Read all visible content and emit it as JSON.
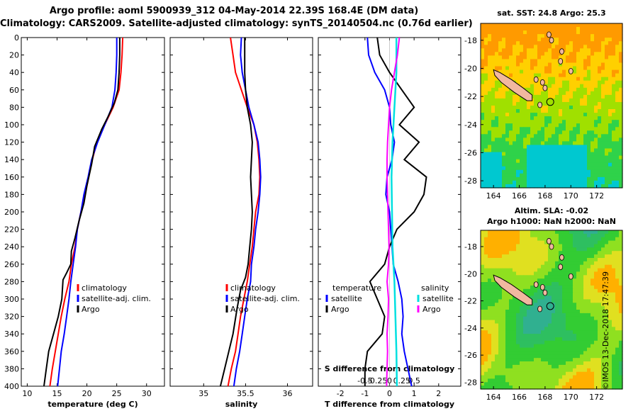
{
  "title": {
    "line1": "Argo profile: aoml 5900939_312 04-May-2014 22.39S 168.4E (DM data)",
    "line2": "Climatology: CARS2009. Satellite-adjusted climatology: synTS_20140504.nc (0.76d earlier)"
  },
  "colors": {
    "clim": "#ff0000",
    "sat": "#0000ff",
    "argo": "#000000",
    "sat_s": "#00e0e0",
    "argo_s": "#ff00ff"
  },
  "chart_data": [
    {
      "id": "temp",
      "type": "line",
      "xlabel": "temperature (deg C)",
      "ylabel": "",
      "xlim": [
        9,
        33
      ],
      "xticks": [
        10,
        15,
        20,
        25,
        30
      ],
      "ylim": [
        0,
        400
      ],
      "yticks": [
        0,
        20,
        40,
        60,
        80,
        100,
        120,
        140,
        160,
        180,
        200,
        220,
        240,
        260,
        280,
        300,
        320,
        340,
        360,
        380,
        400
      ],
      "legend": [
        "climatology",
        "satellite-adj. clim.",
        "Argo"
      ],
      "series": [
        {
          "name": "climatology",
          "color": "#ff0000",
          "points": [
            [
              26.0,
              0
            ],
            [
              25.9,
              20
            ],
            [
              25.7,
              40
            ],
            [
              25.4,
              60
            ],
            [
              24.4,
              80
            ],
            [
              23.0,
              100
            ],
            [
              21.7,
              120
            ],
            [
              20.9,
              140
            ],
            [
              20.3,
              160
            ],
            [
              19.7,
              180
            ],
            [
              19.0,
              200
            ],
            [
              18.4,
              220
            ],
            [
              18.0,
              240
            ],
            [
              17.4,
              260
            ],
            [
              17.0,
              280
            ],
            [
              16.3,
              300
            ],
            [
              15.7,
              320
            ],
            [
              15.2,
              340
            ],
            [
              14.7,
              360
            ],
            [
              14.2,
              380
            ],
            [
              13.8,
              400
            ]
          ]
        },
        {
          "name": "satellite-adj. clim.",
          "color": "#0000ff",
          "points": [
            [
              25.0,
              0
            ],
            [
              25.0,
              20
            ],
            [
              24.9,
              40
            ],
            [
              24.7,
              60
            ],
            [
              24.2,
              80
            ],
            [
              23.0,
              100
            ],
            [
              21.8,
              120
            ],
            [
              20.8,
              140
            ],
            [
              20.2,
              160
            ],
            [
              19.5,
              180
            ],
            [
              19.0,
              200
            ],
            [
              18.4,
              220
            ],
            [
              18.1,
              240
            ],
            [
              17.7,
              260
            ],
            [
              17.3,
              280
            ],
            [
              17.0,
              300
            ],
            [
              16.6,
              320
            ],
            [
              16.2,
              340
            ],
            [
              15.7,
              360
            ],
            [
              15.4,
              380
            ],
            [
              15.1,
              400
            ]
          ]
        },
        {
          "name": "Argo",
          "color": "#000000",
          "points": [
            [
              25.5,
              0
            ],
            [
              25.5,
              20
            ],
            [
              25.4,
              40
            ],
            [
              25.2,
              60
            ],
            [
              24.6,
              75
            ],
            [
              23.6,
              90
            ],
            [
              22.5,
              105
            ],
            [
              21.3,
              125
            ],
            [
              20.8,
              145
            ],
            [
              20.0,
              170
            ],
            [
              19.5,
              190
            ],
            [
              18.7,
              210
            ],
            [
              18.0,
              230
            ],
            [
              17.4,
              245
            ],
            [
              17.3,
              260
            ],
            [
              16.6,
              270
            ],
            [
              16.0,
              278
            ],
            [
              15.8,
              300
            ],
            [
              15.2,
              320
            ],
            [
              14.4,
              340
            ],
            [
              13.6,
              360
            ],
            [
              13.2,
              380
            ],
            [
              12.8,
              400
            ]
          ]
        }
      ]
    },
    {
      "id": "sal",
      "type": "line",
      "xlabel": "salinity",
      "ylabel": "",
      "xlim": [
        34.6,
        36.3
      ],
      "xticks": [
        35,
        35.5,
        36
      ],
      "xtick_labels": [
        "35",
        "35.5",
        "36"
      ],
      "ylim": [
        0,
        400
      ],
      "legend": [
        "climatology",
        "satellite-adj. clim.",
        "Argo"
      ],
      "series": [
        {
          "name": "climatology",
          "color": "#ff0000",
          "points": [
            [
              35.32,
              0
            ],
            [
              35.35,
              20
            ],
            [
              35.38,
              40
            ],
            [
              35.45,
              60
            ],
            [
              35.52,
              80
            ],
            [
              35.6,
              100
            ],
            [
              35.64,
              120
            ],
            [
              35.66,
              140
            ],
            [
              35.67,
              160
            ],
            [
              35.66,
              180
            ],
            [
              35.62,
              200
            ],
            [
              35.6,
              220
            ],
            [
              35.58,
              240
            ],
            [
              35.55,
              260
            ],
            [
              35.52,
              280
            ],
            [
              35.48,
              300
            ],
            [
              35.44,
              320
            ],
            [
              35.41,
              340
            ],
            [
              35.38,
              360
            ],
            [
              35.33,
              380
            ],
            [
              35.29,
              400
            ]
          ]
        },
        {
          "name": "satellite-adj. clim.",
          "color": "#0000ff",
          "points": [
            [
              35.45,
              0
            ],
            [
              35.44,
              20
            ],
            [
              35.46,
              40
            ],
            [
              35.5,
              60
            ],
            [
              35.54,
              80
            ],
            [
              35.6,
              100
            ],
            [
              35.65,
              120
            ],
            [
              35.67,
              140
            ],
            [
              35.68,
              160
            ],
            [
              35.67,
              180
            ],
            [
              35.65,
              200
            ],
            [
              35.62,
              220
            ],
            [
              35.6,
              240
            ],
            [
              35.57,
              260
            ],
            [
              35.56,
              280
            ],
            [
              35.52,
              300
            ],
            [
              35.49,
              320
            ],
            [
              35.46,
              340
            ],
            [
              35.43,
              360
            ],
            [
              35.39,
              380
            ],
            [
              35.36,
              400
            ]
          ]
        },
        {
          "name": "Argo",
          "color": "#000000",
          "points": [
            [
              35.49,
              0
            ],
            [
              35.49,
              20
            ],
            [
              35.49,
              40
            ],
            [
              35.5,
              60
            ],
            [
              35.52,
              80
            ],
            [
              35.56,
              100
            ],
            [
              35.58,
              120
            ],
            [
              35.57,
              140
            ],
            [
              35.56,
              160
            ],
            [
              35.57,
              180
            ],
            [
              35.58,
              200
            ],
            [
              35.57,
              220
            ],
            [
              35.55,
              240
            ],
            [
              35.53,
              260
            ],
            [
              35.5,
              275
            ],
            [
              35.44,
              290
            ],
            [
              35.4,
              310
            ],
            [
              35.35,
              340
            ],
            [
              35.3,
              360
            ],
            [
              35.25,
              380
            ],
            [
              35.2,
              400
            ]
          ]
        }
      ]
    },
    {
      "id": "diff",
      "type": "line",
      "xlabel": "T difference from climatology",
      "xlabel2": "S difference from climatology",
      "xlim": [
        -2.9,
        2.9
      ],
      "xticks": [
        -2,
        -1,
        0,
        1,
        2
      ],
      "s_ticks": [
        -0.5,
        -0.25,
        0,
        0.25,
        0.5
      ],
      "s_tick_labels": [
        "-0.5",
        "-0.25",
        "0",
        "0.25",
        "0.5"
      ],
      "s_scale": 2,
      "ylim": [
        0,
        400
      ],
      "legend_temp": {
        "title": "temperature",
        "items": [
          "satellite",
          "Argo"
        ]
      },
      "legend_sal": {
        "title": "salinity",
        "items": [
          "satellite",
          "Argo"
        ]
      },
      "series": [
        {
          "name": "T satellite",
          "color": "#0000ff",
          "points": [
            [
              -0.9,
              0
            ],
            [
              -0.85,
              20
            ],
            [
              -0.6,
              40
            ],
            [
              -0.2,
              60
            ],
            [
              0.0,
              80
            ],
            [
              0.05,
              100
            ],
            [
              0.2,
              120
            ],
            [
              0.1,
              140
            ],
            [
              -0.1,
              160
            ],
            [
              -0.15,
              180
            ],
            [
              0.0,
              200
            ],
            [
              0.05,
              220
            ],
            [
              0.1,
              240
            ],
            [
              0.15,
              260
            ],
            [
              0.35,
              280
            ],
            [
              0.5,
              300
            ],
            [
              0.55,
              320
            ],
            [
              0.5,
              340
            ],
            [
              0.6,
              360
            ],
            [
              0.75,
              380
            ],
            [
              0.9,
              400
            ]
          ]
        },
        {
          "name": "T Argo",
          "color": "#000000",
          "points": [
            [
              -0.5,
              0
            ],
            [
              -0.4,
              20
            ],
            [
              0.0,
              40
            ],
            [
              0.5,
              60
            ],
            [
              1.0,
              80
            ],
            [
              0.4,
              100
            ],
            [
              1.2,
              120
            ],
            [
              0.6,
              140
            ],
            [
              1.5,
              160
            ],
            [
              1.4,
              180
            ],
            [
              1.0,
              200
            ],
            [
              0.3,
              220
            ],
            [
              0.0,
              240
            ],
            [
              -0.2,
              260
            ],
            [
              -0.8,
              280
            ],
            [
              -0.5,
              300
            ],
            [
              -0.2,
              320
            ],
            [
              -0.3,
              340
            ],
            [
              -0.9,
              360
            ],
            [
              -1.0,
              380
            ],
            [
              -1.0,
              400
            ]
          ]
        },
        {
          "name": "S satellite",
          "color": "#00e0e0",
          "points": [
            [
              0.14,
              0
            ],
            [
              0.14,
              40
            ],
            [
              0.1,
              80
            ],
            [
              0.06,
              120
            ],
            [
              0.04,
              160
            ],
            [
              0.05,
              200
            ],
            [
              0.06,
              240
            ],
            [
              0.1,
              280
            ],
            [
              0.12,
              320
            ],
            [
              0.14,
              360
            ],
            [
              0.15,
              400
            ]
          ]
        },
        {
          "name": "S Argo",
          "color": "#ff00ff",
          "points": [
            [
              0.2,
              0
            ],
            [
              0.16,
              20
            ],
            [
              0.1,
              40
            ],
            [
              0.04,
              60
            ],
            [
              0.0,
              80
            ],
            [
              -0.02,
              100
            ],
            [
              -0.04,
              120
            ],
            [
              -0.05,
              140
            ],
            [
              -0.05,
              160
            ],
            [
              -0.04,
              180
            ],
            [
              -0.03,
              200
            ],
            [
              -0.02,
              220
            ],
            [
              -0.01,
              240
            ],
            [
              -0.02,
              260
            ],
            [
              -0.05,
              280
            ],
            [
              -0.02,
              300
            ],
            [
              -0.03,
              320
            ],
            [
              -0.05,
              340
            ],
            [
              -0.04,
              360
            ],
            [
              -0.05,
              380
            ],
            [
              -0.06,
              400
            ]
          ]
        }
      ]
    },
    {
      "id": "sst-map",
      "type": "heatmap",
      "title": "sat. SST: 24.8 Argo: 25.3",
      "xlim": [
        163,
        174
      ],
      "ylim": [
        -28.5,
        -16.8
      ],
      "xticks": [
        164,
        166,
        168,
        170,
        172
      ],
      "yticks": [
        -18,
        -20,
        -22,
        -24,
        -26,
        -28
      ],
      "argo_position": [
        168.4,
        -22.39
      ]
    },
    {
      "id": "sla-map",
      "type": "heatmap",
      "title": "Altim. SLA: -0.02",
      "subtitle": "Argo h1000: NaN h2000: NaN",
      "xlim": [
        163,
        174
      ],
      "ylim": [
        -28.5,
        -16.8
      ],
      "xticks": [
        164,
        166,
        168,
        170,
        172
      ],
      "yticks": [
        -18,
        -20,
        -22,
        -24,
        -26,
        -28
      ],
      "argo_position": [
        168.4,
        -22.39
      ]
    }
  ],
  "credit": "©IMOS 13-Dec-2018 17:47:39"
}
